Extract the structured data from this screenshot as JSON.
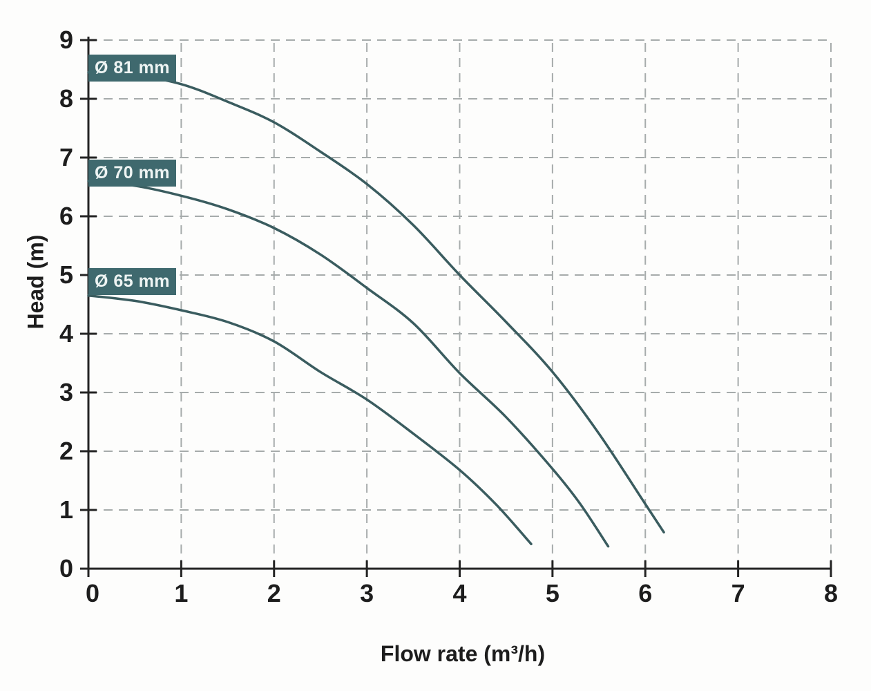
{
  "chart_data": {
    "type": "line",
    "title": "",
    "xlabel": "Flow rate (m³/h)",
    "ylabel": "Head (m)",
    "xlim": [
      0,
      8
    ],
    "ylim": [
      0,
      9
    ],
    "x_ticks": [
      0,
      1,
      2,
      3,
      4,
      5,
      6,
      7,
      8
    ],
    "y_ticks": [
      0,
      1,
      2,
      3,
      4,
      5,
      6,
      7,
      8,
      9
    ],
    "grid": "dashed",
    "legend_position": "on-curve badges at left edge",
    "series": [
      {
        "label": "Ø 81 mm",
        "points": [
          [
            0,
            8.45
          ],
          [
            0.5,
            8.4
          ],
          [
            1,
            8.25
          ],
          [
            1.5,
            7.95
          ],
          [
            2,
            7.6
          ],
          [
            2.5,
            7.1
          ],
          [
            3,
            6.55
          ],
          [
            3.5,
            5.85
          ],
          [
            4,
            5.0
          ],
          [
            4.5,
            4.2
          ],
          [
            5,
            3.35
          ],
          [
            5.5,
            2.3
          ],
          [
            6,
            1.1
          ],
          [
            6.2,
            0.62
          ]
        ]
      },
      {
        "label": "Ø 70 mm",
        "points": [
          [
            0,
            6.6
          ],
          [
            0.5,
            6.52
          ],
          [
            1,
            6.35
          ],
          [
            1.5,
            6.12
          ],
          [
            2,
            5.8
          ],
          [
            2.5,
            5.35
          ],
          [
            3,
            4.78
          ],
          [
            3.5,
            4.18
          ],
          [
            4,
            3.33
          ],
          [
            4.5,
            2.58
          ],
          [
            5,
            1.7
          ],
          [
            5.3,
            1.1
          ],
          [
            5.6,
            0.38
          ]
        ]
      },
      {
        "label": "Ø 65 mm",
        "points": [
          [
            0,
            4.65
          ],
          [
            0.5,
            4.56
          ],
          [
            1,
            4.4
          ],
          [
            1.5,
            4.2
          ],
          [
            2,
            3.87
          ],
          [
            2.5,
            3.35
          ],
          [
            3,
            2.88
          ],
          [
            3.5,
            2.3
          ],
          [
            4,
            1.68
          ],
          [
            4.4,
            1.08
          ],
          [
            4.77,
            0.42
          ]
        ]
      }
    ]
  },
  "colors": {
    "curve": "#3a5c5f",
    "badge_bg": "#3f696e",
    "badge_text": "#eef4f3",
    "axis": "#232323",
    "tick_label": "#1d1d1d",
    "grid": "#a6abab",
    "background": "#fdfdfc"
  }
}
